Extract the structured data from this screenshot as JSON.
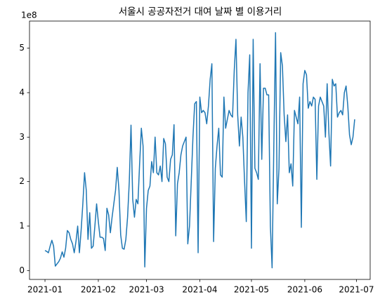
{
  "chart_data": {
    "type": "line",
    "title": "서울시 공공자전거 대여 날짜 별 이용거리",
    "y_offset_label": "1e8",
    "x": [
      0,
      1,
      2,
      3,
      4,
      5,
      6,
      7,
      8,
      9,
      10,
      11,
      12,
      13,
      14,
      15,
      16,
      17,
      18,
      19,
      20,
      21,
      22,
      23,
      24,
      25,
      26,
      27,
      28,
      29,
      30,
      31,
      32,
      33,
      34,
      35,
      36,
      37,
      38,
      39,
      40,
      41,
      42,
      43,
      44,
      45,
      46,
      47,
      48,
      49,
      50,
      51,
      52,
      53,
      54,
      55,
      56,
      57,
      58,
      59,
      60,
      61,
      62,
      63,
      64,
      65,
      66,
      67,
      68,
      69,
      70,
      71,
      72,
      73,
      74,
      75,
      76,
      77,
      78,
      79,
      80,
      81,
      82,
      83,
      84,
      85,
      86,
      87,
      88,
      89,
      90,
      91,
      92,
      93,
      94,
      95,
      96,
      97,
      98,
      99,
      100,
      101,
      102,
      103,
      104,
      105,
      106,
      107,
      108,
      109,
      110,
      111,
      112,
      113,
      114,
      115,
      116,
      117,
      118,
      119,
      120,
      121,
      122,
      123,
      124,
      125,
      126,
      127,
      128,
      129,
      130,
      131,
      132,
      133,
      134,
      135,
      136,
      137,
      138,
      139,
      140,
      141,
      142,
      143,
      144,
      145,
      146,
      147,
      148,
      149,
      150,
      151,
      152,
      153,
      154,
      155,
      156,
      157,
      158,
      159,
      160,
      161,
      162,
      163,
      164,
      165,
      166,
      167,
      168,
      169,
      170,
      171,
      172,
      173,
      174,
      175,
      176,
      177,
      178,
      179,
      180
    ],
    "series": [
      {
        "color": "#1f77b4",
        "values": [
          0.45,
          0.43,
          0.4,
          0.55,
          0.68,
          0.55,
          0.1,
          0.15,
          0.2,
          0.28,
          0.42,
          0.3,
          0.5,
          0.9,
          0.85,
          0.7,
          0.6,
          0.4,
          0.65,
          1.0,
          0.4,
          0.9,
          1.5,
          2.2,
          1.8,
          0.7,
          1.3,
          0.5,
          0.55,
          1.0,
          1.5,
          1.1,
          0.75,
          0.75,
          0.72,
          0.45,
          1.4,
          1.25,
          0.85,
          1.2,
          1.5,
          1.8,
          2.32,
          1.8,
          0.8,
          0.5,
          0.48,
          0.7,
          1.2,
          2.0,
          3.27,
          1.6,
          1.2,
          1.6,
          1.5,
          2.4,
          3.2,
          2.8,
          0.08,
          1.4,
          1.8,
          1.9,
          2.45,
          2.2,
          3.0,
          2.2,
          2.15,
          2.35,
          2.0,
          2.97,
          2.85,
          2.1,
          2.0,
          2.5,
          2.6,
          3.28,
          0.78,
          1.95,
          2.2,
          2.6,
          2.8,
          2.9,
          3.0,
          0.6,
          1.0,
          2.0,
          3.0,
          3.75,
          3.8,
          0.4,
          3.9,
          3.55,
          3.6,
          3.55,
          3.3,
          3.7,
          4.3,
          4.65,
          0.65,
          2.3,
          2.8,
          3.2,
          2.15,
          2.1,
          3.9,
          3.2,
          3.4,
          3.6,
          3.5,
          3.45,
          4.5,
          5.2,
          3.5,
          2.8,
          3.45,
          3.0,
          2.0,
          1.1,
          4.0,
          4.85,
          0.5,
          5.2,
          2.3,
          2.2,
          2.05,
          4.65,
          2.5,
          4.1,
          4.1,
          3.95,
          3.95,
          1.0,
          0.06,
          2.8,
          5.35,
          1.5,
          2.3,
          4.9,
          4.6,
          3.5,
          2.9,
          3.5,
          2.2,
          2.4,
          1.9,
          3.6,
          3.45,
          3.3,
          3.9,
          0.97,
          4.2,
          4.5,
          4.4,
          3.65,
          3.8,
          3.7,
          3.9,
          3.85,
          2.05,
          3.7,
          3.9,
          3.8,
          3.7,
          3.0,
          4.2,
          3.1,
          2.35,
          4.3,
          4.15,
          4.2,
          3.45,
          3.55,
          3.6,
          3.5,
          4.0,
          4.15,
          3.7,
          3.05,
          2.83,
          3.0,
          3.4
        ]
      }
    ],
    "xlim": [
      -9,
      189
    ],
    "xticks": [
      {
        "value": 0,
        "label": "2021-01"
      },
      {
        "value": 31,
        "label": "2021-02"
      },
      {
        "value": 59,
        "label": "2021-03"
      },
      {
        "value": 90,
        "label": "2021-04"
      },
      {
        "value": 120,
        "label": "2021-05"
      },
      {
        "value": 151,
        "label": "2021-06"
      },
      {
        "value": 181,
        "label": "2021-07"
      }
    ],
    "ylim": [
      -0.2,
      5.61
    ],
    "yticks": [
      0,
      1,
      2,
      3,
      4,
      5
    ],
    "grid": false
  }
}
